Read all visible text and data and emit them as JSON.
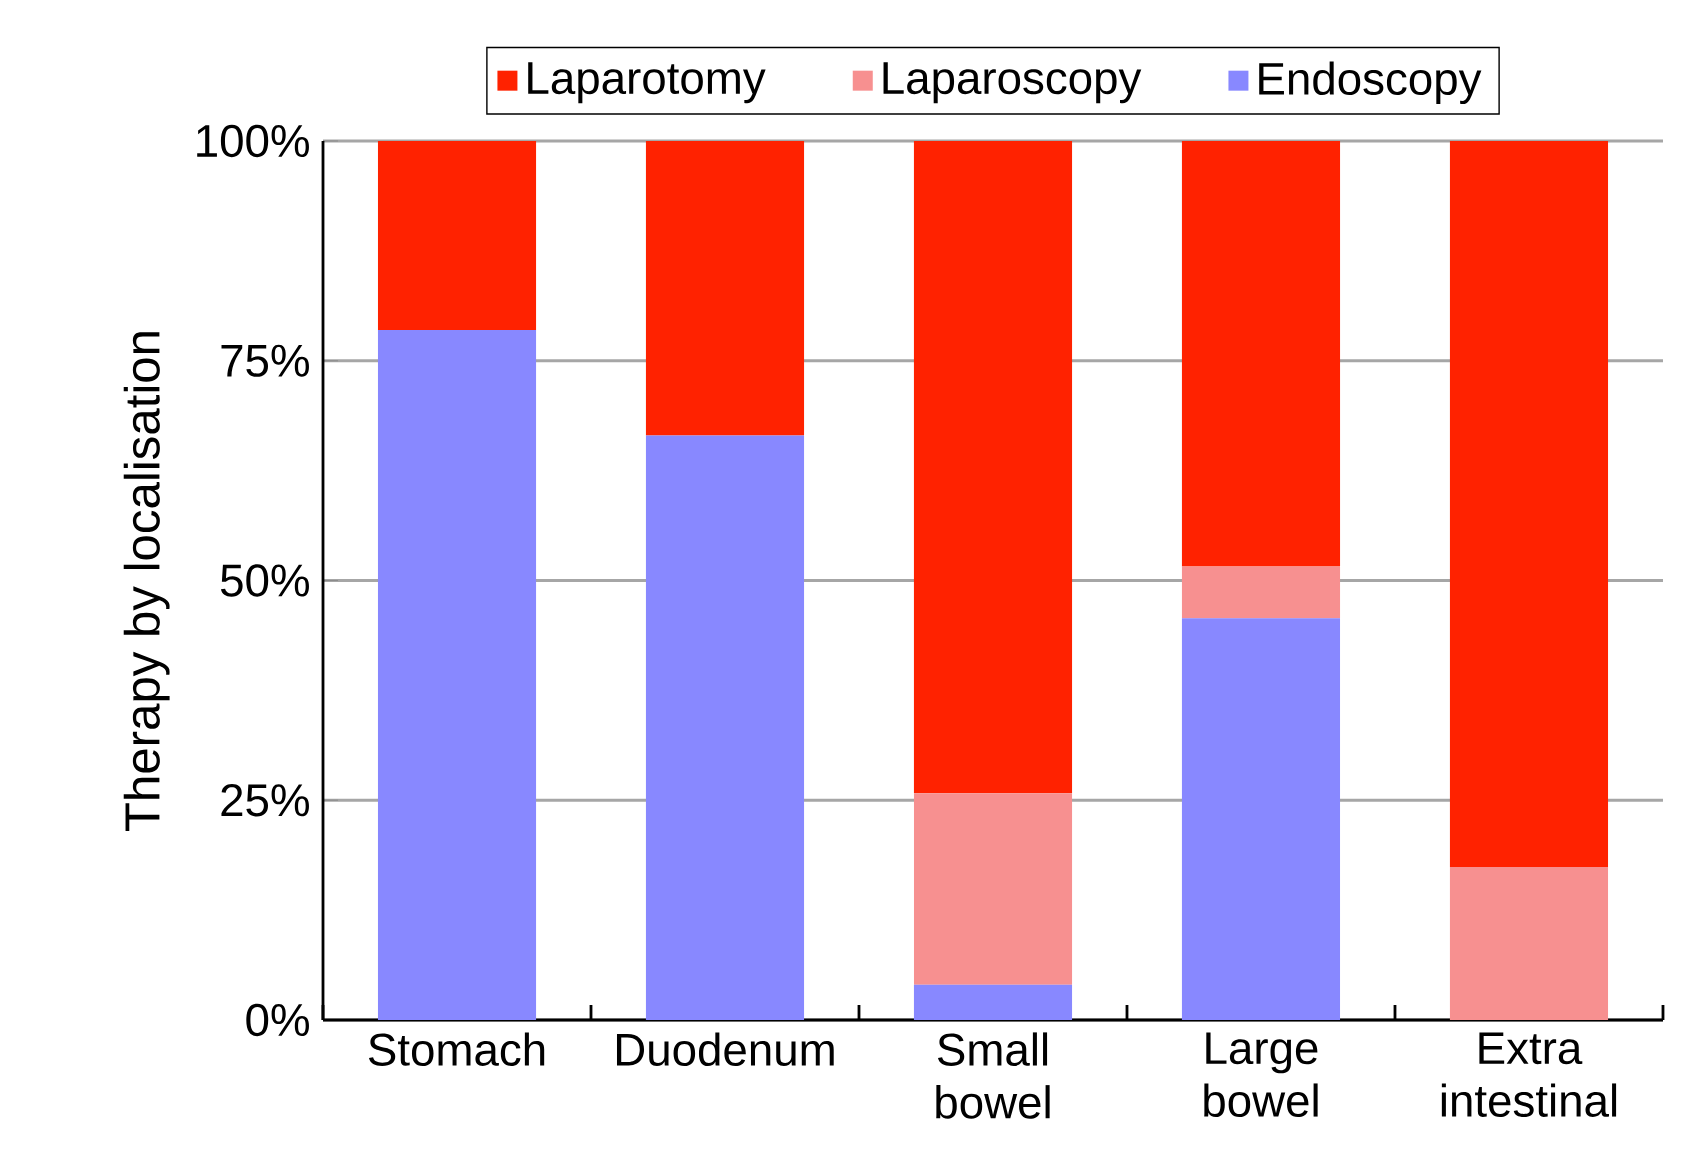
{
  "chart_data": {
    "type": "bar",
    "stacked": true,
    "ylabel": "Therapy by localisation",
    "categories": [
      "Stomach",
      "Duodenum",
      "Small bowel",
      "Large bowel",
      "Extra intestinal"
    ],
    "series": [
      {
        "name": "Endoscopy",
        "color": "#8888ff",
        "values": [
          78.5,
          66.5,
          4,
          45.7,
          0
        ]
      },
      {
        "name": "Laparoscopy",
        "color": "#f79090",
        "values": [
          0,
          0,
          21.8,
          5.9,
          17.4
        ]
      },
      {
        "name": "Laparotomy",
        "color": "#ff2200",
        "values": [
          21.5,
          33.5,
          74.2,
          48.4,
          82.6
        ]
      }
    ],
    "ylim": [
      0,
      100
    ],
    "yticks": [
      {
        "value": 0,
        "label": "0%"
      },
      {
        "value": 25,
        "label": "25%"
      },
      {
        "value": 50,
        "label": "50%"
      },
      {
        "value": 75,
        "label": "75%"
      },
      {
        "value": 100,
        "label": "100%"
      }
    ],
    "grid": "y",
    "legend": "top"
  }
}
